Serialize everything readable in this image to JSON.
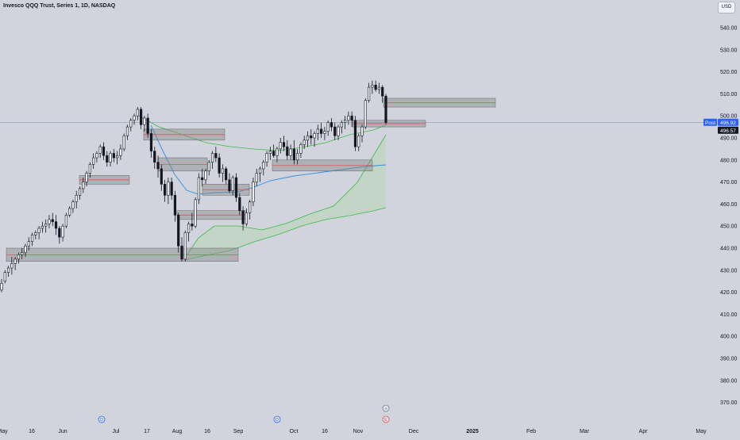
{
  "header": {
    "title": "Invesco QQQ Trust, Series 1, 1D, NASDAQ",
    "currency": "USD"
  },
  "price_labels": {
    "post_tag": "Post",
    "post_price": "496.92",
    "last_price": "496.57"
  },
  "event_markers": {
    "dividend": "D",
    "earnings_plus": "+",
    "earnings_e": "E"
  },
  "colors": {
    "background": "#d1d4dc",
    "candle": "#131722",
    "zone_fill": "#888888",
    "zone_line": "#e05555",
    "price_line": "#7b8ab0",
    "ma_blue": "#2f8fe0",
    "envelope_green": "#3cb84a",
    "envelope_fill": "#bcd6bd",
    "post_blue": "#2962ff"
  },
  "chart_data": {
    "type": "candlestick",
    "y_axis": {
      "ticks": [
        "540.00",
        "530.00",
        "520.00",
        "510.00",
        "500.00",
        "490.00",
        "480.00",
        "470.00",
        "460.00",
        "450.00",
        "440.00",
        "430.00",
        "420.00",
        "410.00",
        "400.00",
        "390.00",
        "380.00",
        "370.00"
      ],
      "range": [
        366,
        545
      ]
    },
    "x_axis": {
      "labels": [
        "May",
        "16",
        "Jun",
        "Jul",
        "17",
        "Aug",
        "16",
        "Sep",
        "Oct",
        "16",
        "Nov",
        "Dec",
        "2025",
        "Feb",
        "Mar",
        "Apr",
        "May"
      ]
    },
    "candles_ohlc": [
      [
        421,
        426,
        420,
        424
      ],
      [
        425,
        430,
        424,
        429
      ],
      [
        429,
        432,
        427,
        431
      ],
      [
        431,
        436,
        428,
        433
      ],
      [
        433,
        436,
        430,
        435
      ],
      [
        435,
        438,
        433,
        437
      ],
      [
        437,
        440,
        435,
        438
      ],
      [
        438,
        442,
        436,
        441
      ],
      [
        441,
        445,
        439,
        443
      ],
      [
        443,
        447,
        441,
        446
      ],
      [
        446,
        448,
        444,
        447
      ],
      [
        447,
        450,
        444,
        449
      ],
      [
        449,
        452,
        447,
        450
      ],
      [
        450,
        453,
        447,
        451
      ],
      [
        451,
        455,
        449,
        453
      ],
      [
        453,
        456,
        450,
        452
      ],
      [
        452,
        455,
        446,
        449
      ],
      [
        449,
        450,
        442,
        445
      ],
      [
        445,
        451,
        443,
        450
      ],
      [
        450,
        456,
        449,
        455
      ],
      [
        455,
        459,
        454,
        458
      ],
      [
        458,
        462,
        456,
        461
      ],
      [
        461,
        466,
        458,
        464
      ],
      [
        464,
        468,
        462,
        467
      ],
      [
        467,
        472,
        465,
        470
      ],
      [
        470,
        475,
        468,
        474
      ],
      [
        474,
        479,
        472,
        478
      ],
      [
        478,
        483,
        476,
        481
      ],
      [
        481,
        484,
        479,
        483
      ],
      [
        483,
        487,
        481,
        486
      ],
      [
        486,
        488,
        480,
        482
      ],
      [
        482,
        484,
        477,
        479
      ],
      [
        479,
        484,
        477,
        483
      ],
      [
        483,
        485,
        479,
        481
      ],
      [
        481,
        484,
        478,
        482
      ],
      [
        482,
        487,
        480,
        485
      ],
      [
        485,
        492,
        484,
        491
      ],
      [
        491,
        496,
        489,
        495
      ],
      [
        495,
        499,
        493,
        498
      ],
      [
        498,
        501,
        496,
        500
      ],
      [
        500,
        504,
        498,
        503
      ],
      [
        503,
        504,
        494,
        496
      ],
      [
        496,
        500,
        493,
        499
      ],
      [
        499,
        501,
        490,
        492
      ],
      [
        492,
        494,
        481,
        484
      ],
      [
        484,
        486,
        476,
        479
      ],
      [
        479,
        482,
        472,
        476
      ],
      [
        476,
        478,
        466,
        469
      ],
      [
        469,
        471,
        461,
        464
      ],
      [
        464,
        472,
        460,
        470
      ],
      [
        470,
        472,
        462,
        464
      ],
      [
        464,
        466,
        452,
        455
      ],
      [
        455,
        456,
        438,
        441
      ],
      [
        441,
        445,
        434,
        435
      ],
      [
        435,
        448,
        434,
        447
      ],
      [
        447,
        452,
        443,
        451
      ],
      [
        451,
        456,
        448,
        450
      ],
      [
        450,
        463,
        449,
        462
      ],
      [
        462,
        474,
        460,
        472
      ],
      [
        472,
        476,
        468,
        471
      ],
      [
        471,
        476,
        469,
        475
      ],
      [
        475,
        480,
        473,
        479
      ],
      [
        479,
        484,
        476,
        483
      ],
      [
        483,
        486,
        479,
        481
      ],
      [
        481,
        483,
        472,
        474
      ],
      [
        474,
        478,
        470,
        476
      ],
      [
        476,
        477,
        469,
        471
      ],
      [
        471,
        474,
        465,
        466
      ],
      [
        466,
        473,
        464,
        472
      ],
      [
        472,
        474,
        461,
        463
      ],
      [
        463,
        465,
        455,
        457
      ],
      [
        457,
        459,
        448,
        451
      ],
      [
        451,
        458,
        450,
        456
      ],
      [
        456,
        462,
        453,
        461
      ],
      [
        461,
        472,
        459,
        470
      ],
      [
        470,
        476,
        468,
        474
      ],
      [
        474,
        477,
        470,
        476
      ],
      [
        476,
        480,
        473,
        479
      ],
      [
        479,
        484,
        477,
        483
      ],
      [
        483,
        486,
        480,
        484
      ],
      [
        484,
        487,
        481,
        482
      ],
      [
        482,
        486,
        479,
        485
      ],
      [
        485,
        490,
        483,
        488
      ],
      [
        488,
        491,
        484,
        486
      ],
      [
        486,
        489,
        480,
        482
      ],
      [
        482,
        487,
        480,
        485
      ],
      [
        485,
        489,
        478,
        480
      ],
      [
        480,
        485,
        478,
        483
      ],
      [
        483,
        488,
        481,
        487
      ],
      [
        487,
        491,
        485,
        489
      ],
      [
        489,
        493,
        486,
        491
      ],
      [
        491,
        494,
        487,
        490
      ],
      [
        490,
        493,
        486,
        492
      ],
      [
        492,
        496,
        489,
        494
      ],
      [
        494,
        497,
        490,
        492
      ],
      [
        492,
        495,
        489,
        493
      ],
      [
        493,
        498,
        491,
        497
      ],
      [
        497,
        499,
        493,
        495
      ],
      [
        495,
        497,
        489,
        491
      ],
      [
        491,
        496,
        489,
        495
      ],
      [
        495,
        498,
        492,
        497
      ],
      [
        497,
        500,
        494,
        498
      ],
      [
        498,
        502,
        496,
        500
      ],
      [
        500,
        502,
        495,
        498
      ],
      [
        498,
        500,
        484,
        486
      ],
      [
        486,
        492,
        484,
        491
      ],
      [
        491,
        496,
        488,
        495
      ],
      [
        495,
        508,
        494,
        507
      ],
      [
        507,
        515,
        506,
        513
      ],
      [
        513,
        516,
        510,
        514
      ],
      [
        514,
        516,
        511,
        512
      ],
      [
        512,
        515,
        510,
        513
      ],
      [
        513,
        514,
        506,
        509
      ],
      [
        509,
        510,
        496,
        497
      ]
    ],
    "supply_demand_zones": [
      {
        "from": 440,
        "to": 434
      },
      {
        "from": 473,
        "to": 469
      },
      {
        "from": 494,
        "to": 489
      },
      {
        "from": 481,
        "to": 475
      },
      {
        "from": 469,
        "to": 464
      },
      {
        "from": 457,
        "to": 453
      },
      {
        "from": 480,
        "to": 475
      },
      {
        "from": 498,
        "to": 495
      },
      {
        "from": 508,
        "to": 504
      }
    ],
    "moving_average": "blue",
    "envelope": "green"
  }
}
